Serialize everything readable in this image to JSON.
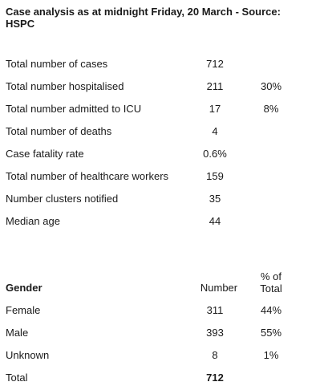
{
  "title": "Case analysis as at midnight Friday, 20 March - Source: HSPC",
  "summary": [
    {
      "label": "Total number of cases",
      "value": "712",
      "pct": ""
    },
    {
      "label": "Total number hospitalised",
      "value": "211",
      "pct": "30%"
    },
    {
      "label": "Total number admitted to ICU",
      "value": "17",
      "pct": "8%"
    },
    {
      "label": "Total number of deaths",
      "value": "4",
      "pct": ""
    },
    {
      "label": "Case fatality rate",
      "value": "0.6%",
      "pct": ""
    },
    {
      "label": "Total number of healthcare workers",
      "value": "159",
      "pct": ""
    },
    {
      "label": "Number clusters notified",
      "value": "35",
      "pct": ""
    },
    {
      "label": "Median age",
      "value": "44",
      "pct": ""
    }
  ],
  "gender_table": {
    "headers": {
      "gender": "Gender",
      "number": "Number",
      "pct_line1": "% of",
      "pct_line2": "Total"
    },
    "rows": [
      {
        "label": "Female",
        "value": "311",
        "pct": "44%"
      },
      {
        "label": "Male",
        "value": "393",
        "pct": "55%"
      },
      {
        "label": "Unknown",
        "value": "8",
        "pct": "1%"
      }
    ],
    "total": {
      "label": "Total",
      "value": "712"
    }
  }
}
